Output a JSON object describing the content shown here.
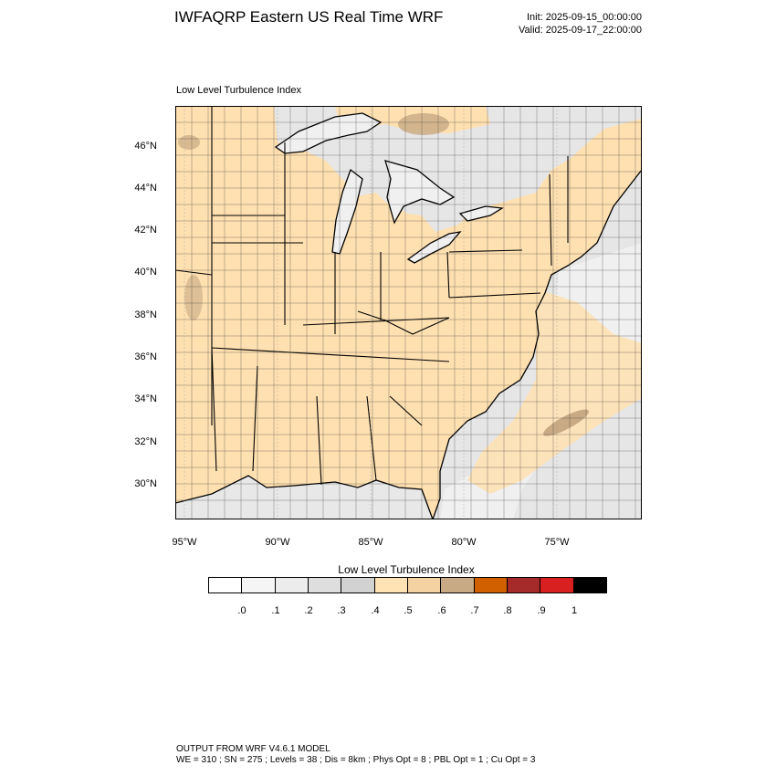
{
  "header": {
    "title": "IWFAQRP Eastern US Real Time WRF",
    "init": "Init: 2025-09-15_00:00:00",
    "valid": "Valid: 2025-09-17_22:00:00"
  },
  "map": {
    "subtitle": "Low Level Turbulence Index",
    "lat_labels": [
      "46°N",
      "44°N",
      "42°N",
      "40°N",
      "38°N",
      "36°N",
      "34°N",
      "32°N",
      "30°N"
    ],
    "lon_labels": [
      "95°W",
      "90°W",
      "85°W",
      "80°W",
      "75°W"
    ],
    "colors": {
      "land_dominant": "#ffe0b0",
      "water_low": "#e8e8e8",
      "lakes": "#f2f2f2",
      "high_patch": "#c8aa85"
    }
  },
  "colorbar": {
    "title": "Low Level Turbulence Index",
    "labels": [
      ".0",
      ".1",
      ".2",
      ".3",
      ".4",
      ".5",
      ".6",
      ".7",
      ".8",
      ".9",
      "1"
    ],
    "colors": [
      "#ffffff",
      "#f5f5f5",
      "#ececec",
      "#dedede",
      "#d2d2d2",
      "#ffe3b5",
      "#f5d2a2",
      "#c8aa85",
      "#d06000",
      "#a52a2a",
      "#d82020",
      "#000000"
    ]
  },
  "footer": {
    "line1": "OUTPUT FROM WRF V4.6.1 MODEL",
    "line2": "WE = 310 ; SN = 275 ; Levels = 38 ; Dis = 8km ; Phys Opt = 8 ; PBL Opt = 1 ; Cu Opt = 3"
  }
}
